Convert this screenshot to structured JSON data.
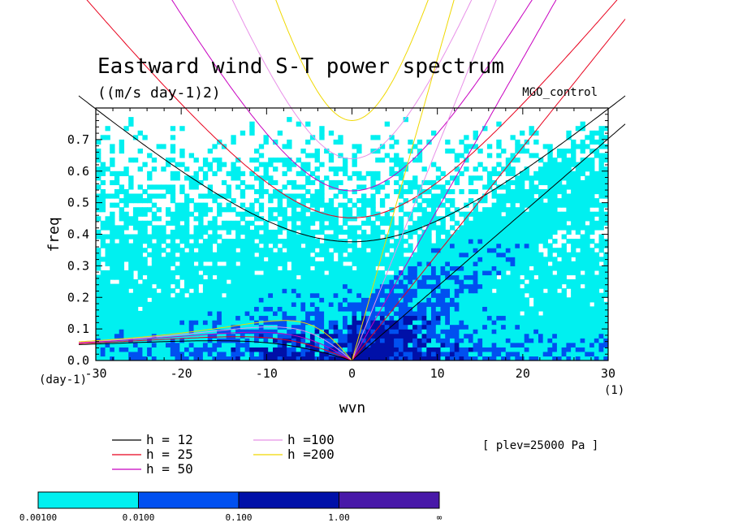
{
  "chart_data": {
    "type": "heatmap",
    "title": "Eastward wind S-T power spectrum",
    "subtitle": "((m/s day-1)2)",
    "run_label": "MGO_control",
    "xlabel": "wvn",
    "ylabel": "freq",
    "x_unit_label": "(1)",
    "y_unit_label": "(day-1)",
    "xlim": [
      -30,
      30
    ],
    "ylim": [
      0,
      0.8
    ],
    "x_ticks": [
      -30,
      -20,
      -10,
      0,
      10,
      20,
      30
    ],
    "x_tick_labels": [
      "-30",
      "-20",
      "-10",
      "0",
      "10",
      "20",
      "30"
    ],
    "y_ticks": [
      0,
      0.1,
      0.2,
      0.3,
      0.4,
      0.5,
      0.6,
      0.7
    ],
    "y_tick_labels": [
      "0.0",
      "0.1",
      "0.2",
      "0.3",
      "0.4",
      "0.5",
      "0.6",
      "0.7"
    ],
    "annotation": "[ plev=25000 Pa ]",
    "dispersion_curves": [
      {
        "label": "h = 12",
        "h": 12,
        "color": "#000000"
      },
      {
        "label": "h = 25",
        "h": 25,
        "color": "#e8001c"
      },
      {
        "label": "h = 50",
        "h": 50,
        "color": "#c800c0"
      },
      {
        "label": "h =100",
        "h": 100,
        "color": "#e890e8"
      },
      {
        "label": "h =200",
        "h": 200,
        "color": "#f0d800"
      }
    ],
    "colorbar": {
      "levels": [
        "0.00100",
        "0.0100",
        "0.100",
        "1.00",
        "∞"
      ],
      "colors": [
        "#00f0f0",
        "#0050f0",
        "#0010a8",
        "#4818a8"
      ]
    },
    "contour_regions": [
      {
        "level": "0.00100-0.0100",
        "description": "broad coverage across most wavenumbers, freq 0-0.8"
      },
      {
        "level": "0.0100-0.100",
        "description": "core around wvn -20..20, freq 0-0.3, plus patches along eastward curves"
      },
      {
        "level": "0.100-1.00",
        "description": "small patches near wvn 0, freq < 0.1"
      }
    ]
  }
}
